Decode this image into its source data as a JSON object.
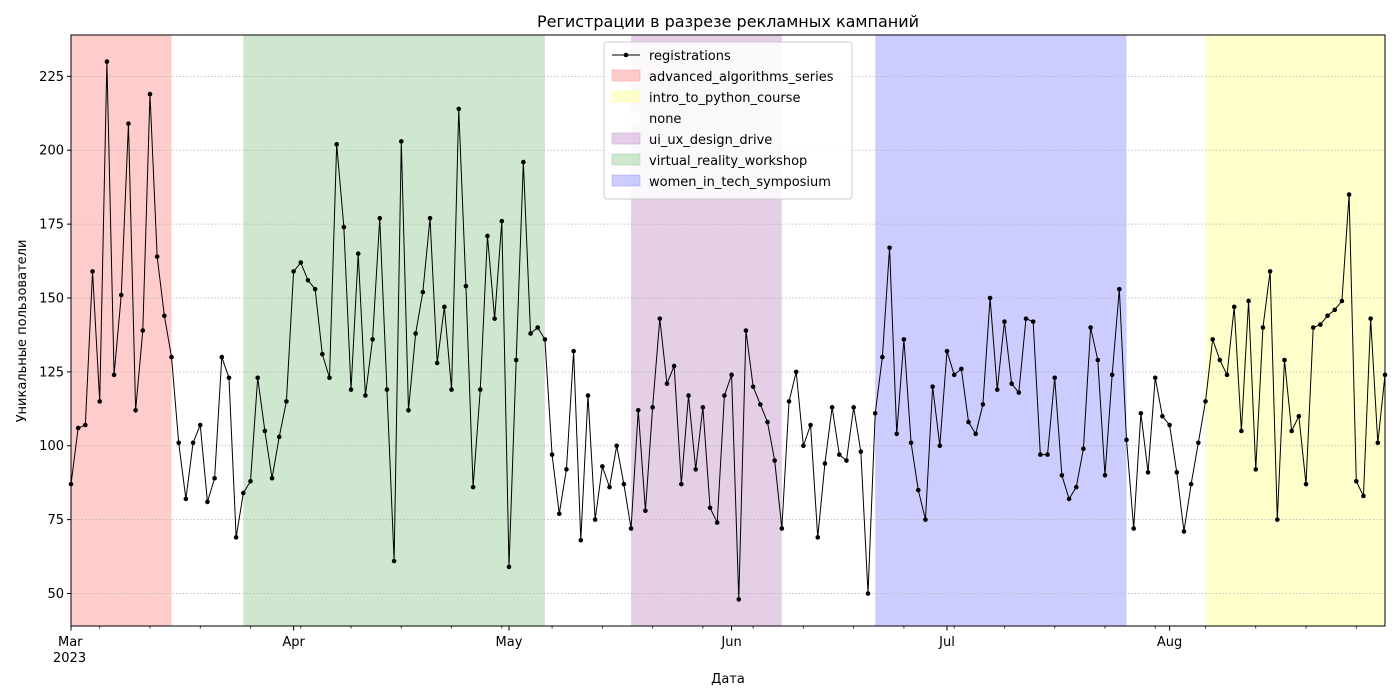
{
  "chart_data": {
    "type": "line",
    "title": "Регистрации в разрезе рекламных кампаний",
    "xlabel": "Дата",
    "ylabel": "Уникальные пользователи",
    "x_start": "2023-03-01",
    "x_end": "2023-08-31",
    "ylim": [
      39,
      239
    ],
    "yticks": [
      50,
      75,
      100,
      125,
      150,
      175,
      200,
      225
    ],
    "xticks": [
      {
        "date": "2023-03-01",
        "label": "Mar",
        "sublabel": "2023"
      },
      {
        "date": "2023-04-01",
        "label": "Apr"
      },
      {
        "date": "2023-05-01",
        "label": "May"
      },
      {
        "date": "2023-06-01",
        "label": "Jun"
      },
      {
        "date": "2023-07-01",
        "label": "Jul"
      },
      {
        "date": "2023-08-01",
        "label": "Aug"
      }
    ],
    "grid": "horizontal-dotted",
    "legend_position": "top-center",
    "series": [
      {
        "name": "registrations",
        "color": "#000000",
        "values": [
          87,
          106,
          107,
          159,
          115,
          230,
          124,
          151,
          209,
          112,
          139,
          219,
          164,
          144,
          130,
          101,
          82,
          101,
          107,
          81,
          89,
          130,
          123,
          69,
          84,
          88,
          123,
          105,
          89,
          103,
          115,
          159,
          162,
          156,
          153,
          131,
          123,
          202,
          174,
          119,
          165,
          117,
          136,
          177,
          119,
          61,
          203,
          112,
          138,
          152,
          177,
          128,
          147,
          119,
          214,
          154,
          86,
          119,
          171,
          143,
          176,
          59,
          129,
          196,
          138,
          140,
          136,
          97,
          77,
          92,
          132,
          68,
          117,
          75,
          93,
          86,
          100,
          87,
          72,
          112,
          78,
          113,
          143,
          121,
          127,
          87,
          117,
          92,
          113,
          79,
          74,
          117,
          124,
          48,
          139,
          120,
          114,
          108,
          95,
          72,
          115,
          125,
          100,
          107,
          69,
          94,
          113,
          97,
          95,
          113,
          98,
          50,
          111,
          130,
          167,
          104,
          136,
          101,
          85,
          75,
          120,
          100,
          132,
          124,
          126,
          108,
          104,
          114,
          150,
          119,
          142,
          121,
          118,
          143,
          142,
          97,
          97,
          123,
          90,
          82,
          86,
          99,
          140,
          129,
          90,
          124,
          153,
          102,
          72,
          111,
          91,
          123,
          110,
          107,
          91,
          71,
          87,
          101,
          115,
          136,
          129,
          124,
          147,
          105,
          149,
          92,
          140,
          159,
          75,
          129,
          105,
          110,
          87,
          140,
          141,
          144,
          146,
          149,
          185,
          88,
          83,
          143,
          101,
          124
        ]
      }
    ],
    "campaigns": [
      {
        "name": "advanced_algorithms_series",
        "color": "#ff9999",
        "start": "2023-03-01",
        "end": "2023-03-15"
      },
      {
        "name": "intro_to_python_course",
        "color": "#ffff99",
        "start": "2023-08-06",
        "end": "2023-08-31"
      },
      {
        "name": "none",
        "color": "#ffffff",
        "start": null,
        "end": null
      },
      {
        "name": "ui_ux_design_drive",
        "color": "#c9a0d0",
        "start": "2023-05-18",
        "end": "2023-06-08"
      },
      {
        "name": "virtual_reality_workshop",
        "color": "#9fd09f",
        "start": "2023-03-25",
        "end": "2023-05-06"
      },
      {
        "name": "women_in_tech_symposium",
        "color": "#9999ff",
        "start": "2023-06-21",
        "end": "2023-07-26"
      }
    ]
  }
}
